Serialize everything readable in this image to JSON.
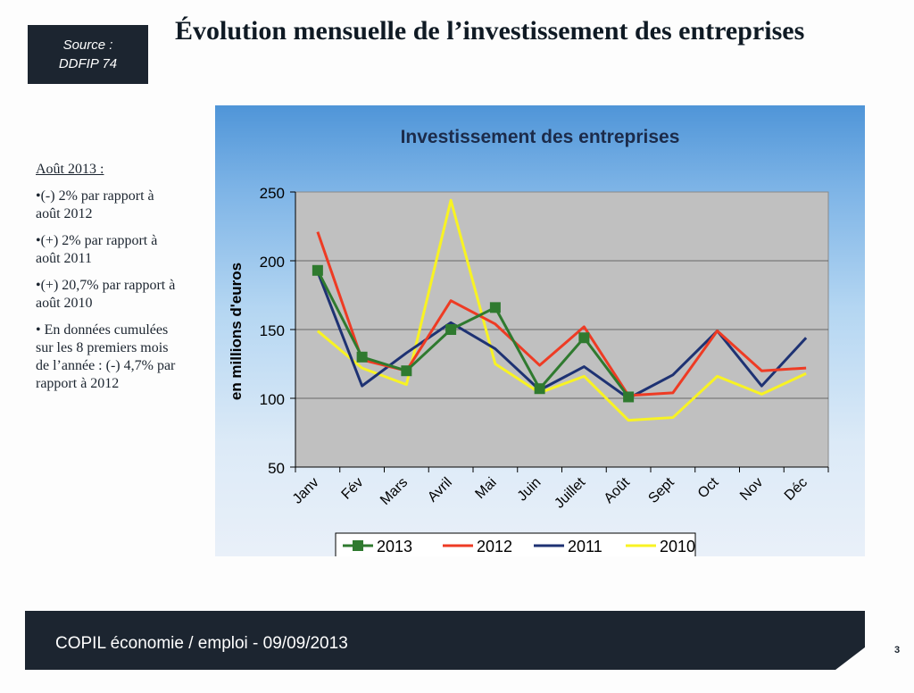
{
  "source": {
    "line1": "Source :",
    "line2": "DDFIP 74"
  },
  "page_title": "Évolution mensuelle de l’investissement des entreprises",
  "notes": {
    "heading": "Août 2013 :",
    "items": [
      "•(-) 2% par rapport à août 2012",
      "•(+) 2% par rapport à août 2011",
      "•(+) 20,7% par rapport à août 2010",
      "• En données cumulées sur les 8 premiers mois de l’année : (-) 4,7% par rapport à 2012"
    ]
  },
  "footer": {
    "text": "COPIL économie / emploi - 09/09/2013",
    "page_number": "3"
  },
  "chart_data": {
    "type": "line",
    "title": "Investissement des entreprises",
    "xlabel": "",
    "ylabel": "en millions d'euros",
    "ylim": [
      50,
      250
    ],
    "yticks": [
      50,
      100,
      150,
      200,
      250
    ],
    "grid": true,
    "legend": "bottom",
    "categories": [
      "Janv",
      "Fév",
      "Mars",
      "Avril",
      "Mai",
      "Juin",
      "Juillet",
      "Août",
      "Sept",
      "Oct",
      "Nov",
      "Déc"
    ],
    "series": [
      {
        "name": "2013",
        "color": "#2f7a2f",
        "marker": "square",
        "values": [
          193,
          130,
          120,
          150,
          166,
          107,
          144,
          101,
          null,
          null,
          null,
          null
        ]
      },
      {
        "name": "2012",
        "color": "#ee3b24",
        "values": [
          221,
          128,
          120,
          171,
          154,
          124,
          152,
          102,
          104,
          149,
          120,
          122
        ]
      },
      {
        "name": "2011",
        "color": "#1e3273",
        "values": [
          192,
          109,
          133,
          155,
          136,
          106,
          123,
          100,
          117,
          149,
          109,
          144
        ]
      },
      {
        "name": "2010",
        "color": "#f8f323",
        "values": [
          149,
          122,
          110,
          244,
          125,
          104,
          116,
          84,
          86,
          116,
          103,
          118
        ]
      }
    ]
  }
}
